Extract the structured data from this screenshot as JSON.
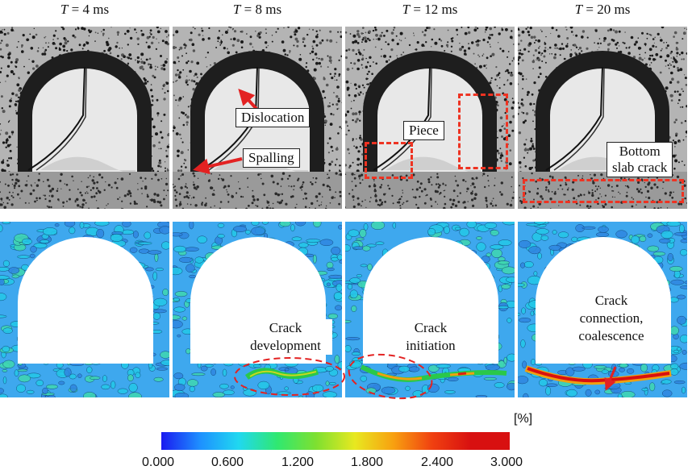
{
  "times": [
    {
      "var": "T",
      "rest": " = 4 ms"
    },
    {
      "var": "T",
      "rest": " = 8 ms"
    },
    {
      "var": "T",
      "rest": " = 12 ms"
    },
    {
      "var": "T",
      "rest": " = 20 ms"
    }
  ],
  "photo_labels": {
    "dislocation": "Dislocation",
    "spalling": "Spalling",
    "piece": "Piece",
    "bottom_slab_crack_line1": "Bottom",
    "bottom_slab_crack_line2": "slab crack"
  },
  "field_labels": {
    "crack_development_line1": "Crack",
    "crack_development_line2": "development",
    "crack_initiation_line1": "Crack",
    "crack_initiation_line2": "initiation",
    "crack_connection_line1": "Crack",
    "crack_connection_line2": "connection,",
    "crack_connection_line3": "coalescence"
  },
  "colorbar": {
    "unit": "[%]",
    "ticks": [
      "0.000",
      "0.600",
      "1.200",
      "1.800",
      "2.400",
      "3.000"
    ],
    "colors": [
      "#1a1af0",
      "#1e90ff",
      "#20d8f0",
      "#30e870",
      "#7ee030",
      "#e8e820",
      "#f8a010",
      "#f04010",
      "#d81010"
    ]
  },
  "colors": {
    "annotation": "#e32222",
    "field_base": "#3aa7ee"
  }
}
